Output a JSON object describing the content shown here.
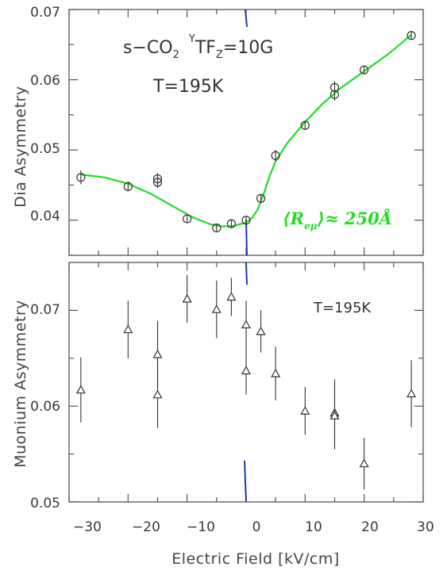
{
  "chart_data": [
    {
      "type": "scatter",
      "ylabel": "Dia Asymmetry",
      "xlim": [
        -30,
        30
      ],
      "ylim": [
        0.035,
        0.07
      ],
      "yticks": [
        "0.04",
        "0.05",
        "0.06",
        "0.07"
      ],
      "annotations": {
        "sample_prefix": "s−CO",
        "sample_sub": "2",
        "field_sup": "Y",
        "field_main": "TF",
        "field_sub": "Z",
        "field_value": "=10G",
        "temperature": "T=195K",
        "radius_note": "⟨R",
        "radius_sub": "eμ",
        "radius_value": "⟩≈ 250Å"
      },
      "colors": {
        "fit": "#22dd22",
        "zero_line": "#1a3aa8"
      },
      "series": [
        {
          "marker": "circle",
          "points": [
            {
              "x": -28,
              "y": 0.0461,
              "err": 0.001
            },
            {
              "x": -20,
              "y": 0.0448,
              "err": 0.0007
            },
            {
              "x": -15,
              "y": 0.0459,
              "err": 0.0008
            },
            {
              "x": -15,
              "y": 0.0454,
              "err": 0.0008
            },
            {
              "x": -10,
              "y": 0.0402,
              "err": 0.0006
            },
            {
              "x": -5,
              "y": 0.0389,
              "err": 0.0006
            },
            {
              "x": -2.5,
              "y": 0.0395,
              "err": 0.0005
            },
            {
              "x": 0,
              "y": 0.04,
              "err": 0.0005
            },
            {
              "x": 2.5,
              "y": 0.0431,
              "err": 0.0006
            },
            {
              "x": 5,
              "y": 0.0492,
              "err": 0.0008
            },
            {
              "x": 10,
              "y": 0.0535,
              "err": 0.0006
            },
            {
              "x": 15,
              "y": 0.0589,
              "err": 0.0009
            },
            {
              "x": 15,
              "y": 0.0579,
              "err": 0.0009
            },
            {
              "x": 20,
              "y": 0.0614,
              "err": 0.0006
            },
            {
              "x": 28,
              "y": 0.0663,
              "err": 0.0006
            }
          ]
        }
      ],
      "fit_curve": [
        [
          -28,
          0.0465
        ],
        [
          -24,
          0.0461
        ],
        [
          -20,
          0.0452
        ],
        [
          -16,
          0.0437
        ],
        [
          -12,
          0.0418
        ],
        [
          -9,
          0.0404
        ],
        [
          -6,
          0.0394
        ],
        [
          -4,
          0.0391
        ],
        [
          -2,
          0.0392
        ],
        [
          0,
          0.0397
        ],
        [
          1,
          0.0403
        ],
        [
          2,
          0.0416
        ],
        [
          3,
          0.0438
        ],
        [
          4,
          0.0463
        ],
        [
          5,
          0.0484
        ],
        [
          7,
          0.051
        ],
        [
          10,
          0.054
        ],
        [
          13,
          0.0566
        ],
        [
          16,
          0.0588
        ],
        [
          20,
          0.0612
        ],
        [
          24,
          0.0636
        ],
        [
          28,
          0.0664
        ]
      ]
    },
    {
      "type": "scatter",
      "xlabel": "Electric Field [kV/cm]",
      "ylabel": "Muonium Asymmetry",
      "xlim": [
        -30,
        30
      ],
      "ylim": [
        0.05,
        0.075
      ],
      "xticks": [
        "−30",
        "−20",
        "−10",
        "0",
        "10",
        "20",
        "30"
      ],
      "yticks": [
        "0.05",
        "0.06",
        "0.07"
      ],
      "annotations": {
        "temperature": "T=195K"
      },
      "series": [
        {
          "marker": "triangle",
          "points": [
            {
              "x": -28,
              "y": 0.0617,
              "err": 0.0034
            },
            {
              "x": -20,
              "y": 0.068,
              "err": 0.003
            },
            {
              "x": -15,
              "y": 0.0654,
              "err": 0.0035
            },
            {
              "x": -15,
              "y": 0.0612,
              "err": 0.0035
            },
            {
              "x": -10,
              "y": 0.0712,
              "err": 0.0025
            },
            {
              "x": -5,
              "y": 0.0701,
              "err": 0.003
            },
            {
              "x": -2.5,
              "y": 0.0714,
              "err": 0.002
            },
            {
              "x": 0,
              "y": 0.0685,
              "err": 0.0025
            },
            {
              "x": 0,
              "y": 0.0637,
              "err": 0.0025
            },
            {
              "x": 2.5,
              "y": 0.0678,
              "err": 0.0022
            },
            {
              "x": 5,
              "y": 0.0634,
              "err": 0.0028
            },
            {
              "x": 10,
              "y": 0.0595,
              "err": 0.0025
            },
            {
              "x": 15,
              "y": 0.0593,
              "err": 0.0035
            },
            {
              "x": 15,
              "y": 0.059,
              "err": 0.0035
            },
            {
              "x": 20,
              "y": 0.054,
              "err": 0.0027
            },
            {
              "x": 28,
              "y": 0.0613,
              "err": 0.0035
            }
          ]
        }
      ]
    }
  ]
}
